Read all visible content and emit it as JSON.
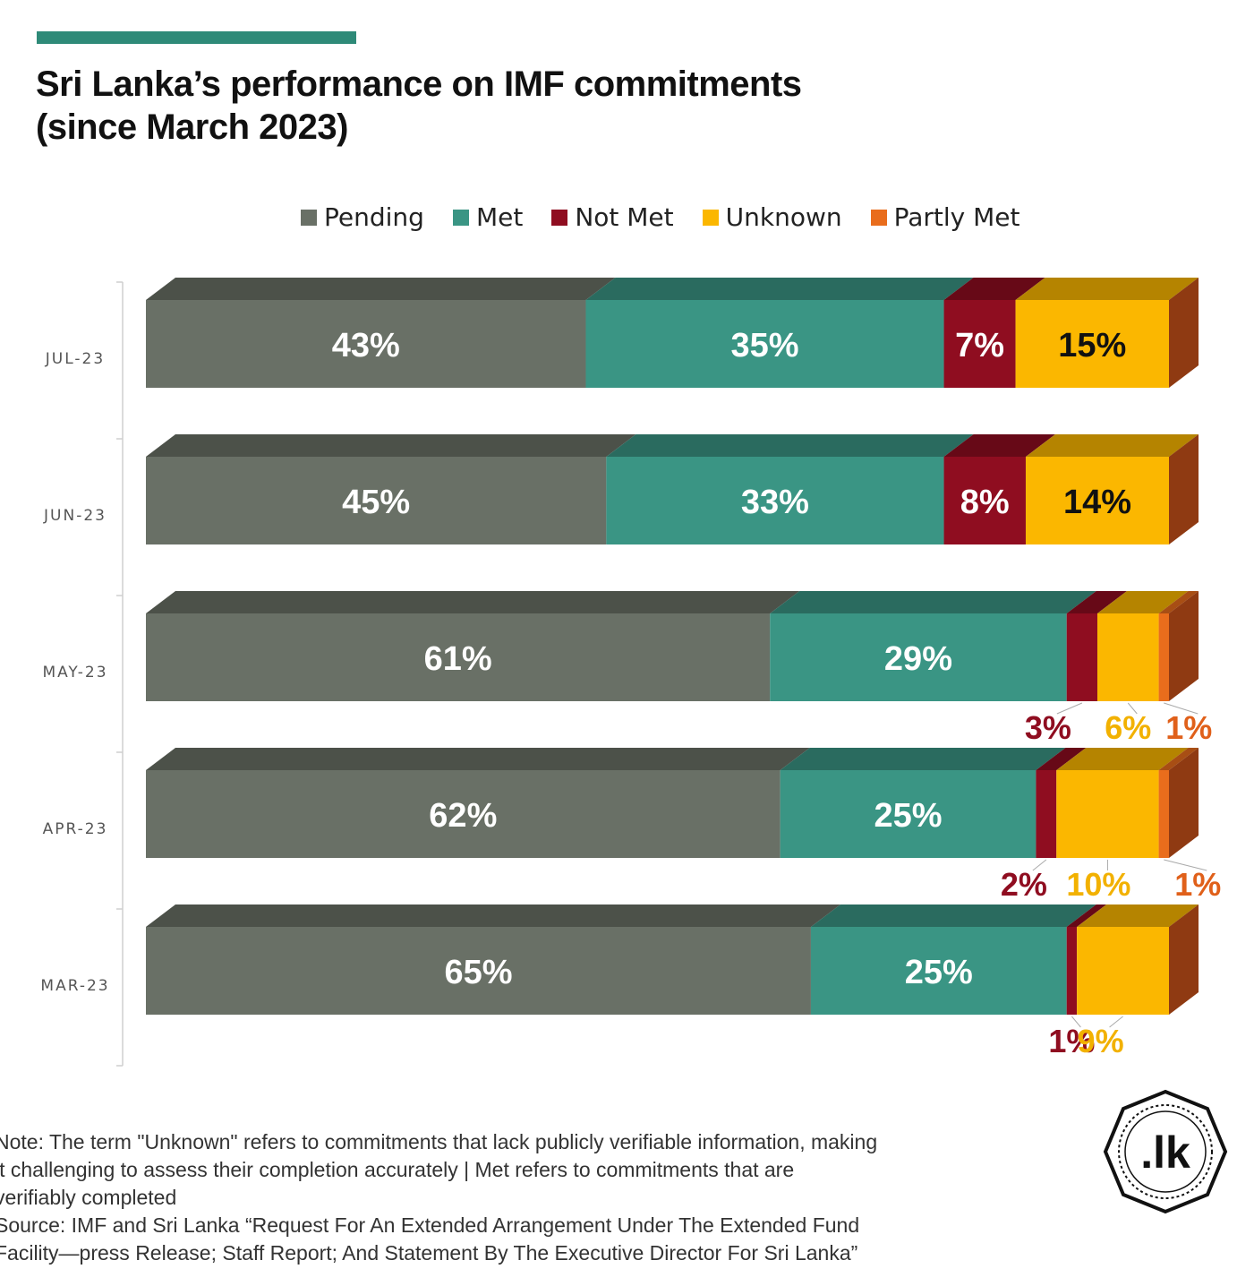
{
  "colors": {
    "accent": "#2e8a78",
    "Pending": "#697066",
    "Met": "#3a9584",
    "Not Met": "#8f0d20",
    "Unknown": "#fbb700",
    "Partly Met": "#e96d1c"
  },
  "header": {
    "title_line1": "Sri Lanka’s performance on IMF commitments",
    "title_line2": "(since March 2023)"
  },
  "legend": {
    "items": [
      {
        "label": "Pending",
        "color_key": "Pending"
      },
      {
        "label": "Met",
        "color_key": "Met"
      },
      {
        "label": "Not Met",
        "color_key": "Not Met"
      },
      {
        "label": "Unknown",
        "color_key": "Unknown"
      },
      {
        "label": "Partly Met",
        "color_key": "Partly Met"
      }
    ]
  },
  "chart_data": {
    "type": "bar",
    "orientation": "horizontal",
    "stacked": true,
    "percent": true,
    "categories": [
      "JUL-23",
      "JUN-23",
      "MAY-23",
      "APR-23",
      "MAR-23"
    ],
    "series": [
      {
        "name": "Pending",
        "values": [
          43,
          45,
          61,
          62,
          65
        ],
        "labels": [
          "43%",
          "45%",
          "61%",
          "62%",
          "65%"
        ]
      },
      {
        "name": "Met",
        "values": [
          35,
          33,
          29,
          25,
          25
        ],
        "labels": [
          "35%",
          "33%",
          "29%",
          "25%",
          "25%"
        ]
      },
      {
        "name": "Not Met",
        "values": [
          7,
          8,
          3,
          2,
          1
        ],
        "labels": [
          "7%",
          "8%",
          "3%",
          "2%",
          "1%"
        ]
      },
      {
        "name": "Unknown",
        "values": [
          15,
          14,
          6,
          10,
          9
        ],
        "labels": [
          "15%",
          "14%",
          "6%",
          "10%",
          "9%"
        ]
      },
      {
        "name": "Partly Met",
        "values": [
          0,
          0,
          1,
          1,
          0
        ],
        "labels": [
          "",
          "",
          "1%",
          "1%",
          ""
        ]
      }
    ],
    "xlim": [
      0,
      100
    ],
    "legend_position": "top",
    "grid": false
  },
  "notes": {
    "note_line1": "Note: The term \"Unknown\" refers to commitments that lack publicly verifiable information, making",
    "note_line2": "it challenging to assess their completion accurately | Met refers to commitments that are",
    "note_line3": "verifiably completed",
    "source_line1": "Source: IMF and Sri Lanka “Request For An Extended Arrangement Under The Extended Fund",
    "source_line2": "Facility—press Release; Staff Report; And Statement By The Executive Director For Sri Lanka”"
  },
  "logo": {
    "text": ".lk"
  }
}
